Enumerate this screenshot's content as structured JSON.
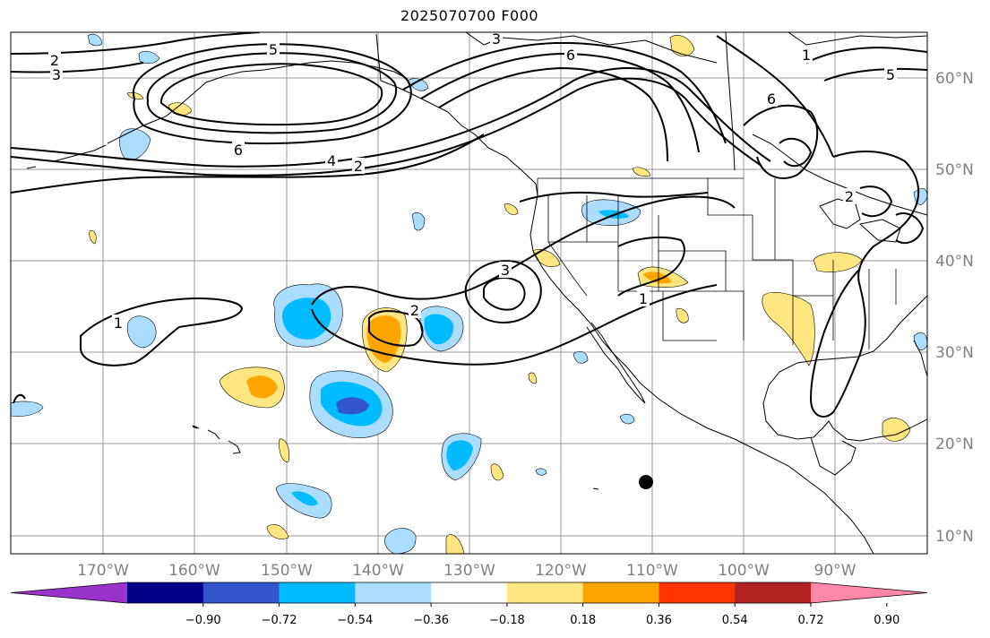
{
  "title": "2025070700 F000",
  "lon_labels": [
    "170°W",
    "160°W",
    "150°W",
    "140°W",
    "130°W",
    "120°W",
    "110°W",
    "100°W",
    "90°W"
  ],
  "lat_labels": [
    "60°N",
    "50°N",
    "40°N",
    "30°N",
    "20°N",
    "10°N"
  ],
  "contour_labels": [
    "2",
    "3",
    "5",
    "6",
    "4",
    "2",
    "3",
    "2",
    "1",
    "1",
    "3",
    "6",
    "5",
    "6",
    "2",
    "1"
  ],
  "colorbar": {
    "ticks": [
      "−0.90",
      "−0.72",
      "−0.54",
      "−0.36",
      "−0.18",
      "0.18",
      "0.36",
      "0.54",
      "0.72",
      "0.90"
    ],
    "colors": [
      "#9933cc",
      "#000088",
      "#3355cc",
      "#00bbff",
      "#aaddff",
      "#ffffff",
      "#ffe680",
      "#ffa500",
      "#ff3300",
      "#b22222",
      "#ff88aa"
    ]
  }
}
